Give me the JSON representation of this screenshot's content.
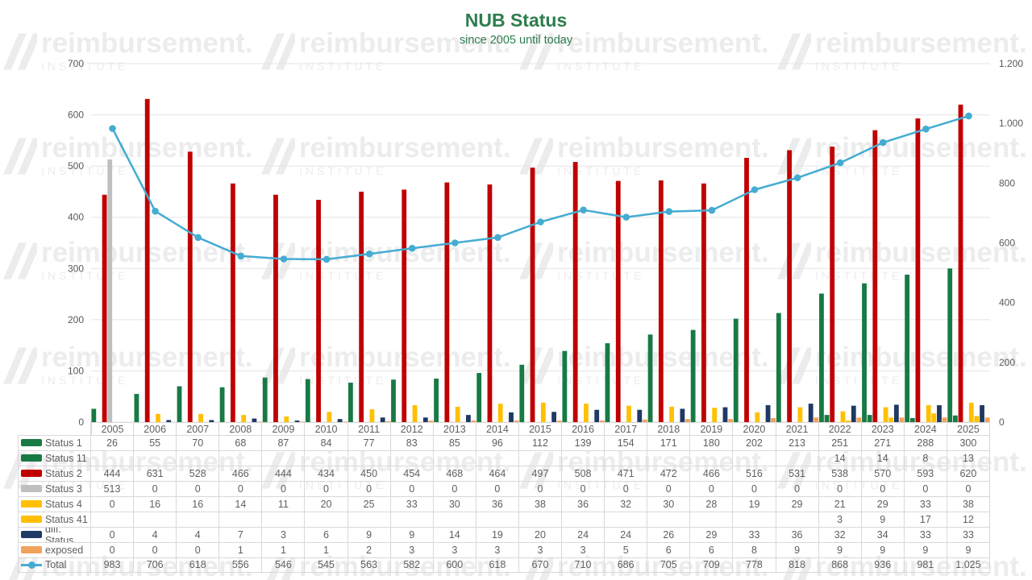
{
  "title": "NUB Status",
  "subtitle": "since 2005 until today",
  "watermark": {
    "brand": "reimbursement.",
    "sub": "INSTITUTE"
  },
  "colors": {
    "title_green": "#2e7d4e",
    "axis_text": "#595959",
    "grid": "#e4e4e4",
    "table_border": "#d9d9d9",
    "table_text": "#5f5f5f"
  },
  "chart_data": {
    "type": "bar",
    "subtype": "clustered-bar-with-line",
    "categories": [
      "2005",
      "2006",
      "2007",
      "2008",
      "2009",
      "2010",
      "2011",
      "2012",
      "2013",
      "2014",
      "2015",
      "2016",
      "2017",
      "2018",
      "2019",
      "2020",
      "2021",
      "2022",
      "2023",
      "2024",
      "2025"
    ],
    "series": [
      {
        "name": "Status 1",
        "type": "bar",
        "axis": "left",
        "color": "#177a45",
        "values": [
          26,
          55,
          70,
          68,
          87,
          84,
          77,
          83,
          85,
          96,
          112,
          139,
          154,
          171,
          180,
          202,
          213,
          251,
          271,
          288,
          300
        ],
        "table": [
          "26",
          "55",
          "70",
          "68",
          "87",
          "84",
          "77",
          "83",
          "85",
          "96",
          "112",
          "139",
          "154",
          "171",
          "180",
          "202",
          "213",
          "251",
          "271",
          "288",
          "300"
        ]
      },
      {
        "name": "Status 11",
        "type": "bar",
        "axis": "left",
        "color": "#177a45",
        "values": [
          null,
          null,
          null,
          null,
          null,
          null,
          null,
          null,
          null,
          null,
          null,
          null,
          null,
          null,
          null,
          null,
          null,
          14,
          14,
          8,
          13
        ],
        "table": [
          "",
          "",
          "",
          "",
          "",
          "",
          "",
          "",
          "",
          "",
          "",
          "",
          "",
          "",
          "",
          "",
          "",
          "14",
          "14",
          "8",
          "13"
        ]
      },
      {
        "name": "Status 2",
        "type": "bar",
        "axis": "left",
        "color": "#c00000",
        "values": [
          444,
          631,
          528,
          466,
          444,
          434,
          450,
          454,
          468,
          464,
          497,
          508,
          471,
          472,
          466,
          516,
          531,
          538,
          570,
          593,
          620
        ],
        "table": [
          "444",
          "631",
          "528",
          "466",
          "444",
          "434",
          "450",
          "454",
          "468",
          "464",
          "497",
          "508",
          "471",
          "472",
          "466",
          "516",
          "531",
          "538",
          "570",
          "593",
          "620"
        ]
      },
      {
        "name": "Status 3",
        "type": "bar",
        "axis": "left",
        "color": "#bfbfbf",
        "values": [
          513,
          0,
          0,
          0,
          0,
          0,
          0,
          0,
          0,
          0,
          0,
          0,
          0,
          0,
          0,
          0,
          0,
          0,
          0,
          0,
          0
        ],
        "table": [
          "513",
          "0",
          "0",
          "0",
          "0",
          "0",
          "0",
          "0",
          "0",
          "0",
          "0",
          "0",
          "0",
          "0",
          "0",
          "0",
          "0",
          "0",
          "0",
          "0",
          "0"
        ]
      },
      {
        "name": "Status 4",
        "type": "bar",
        "axis": "left",
        "color": "#ffc000",
        "values": [
          0,
          16,
          16,
          14,
          11,
          20,
          25,
          33,
          30,
          36,
          38,
          36,
          32,
          30,
          28,
          19,
          29,
          21,
          29,
          33,
          38
        ],
        "table": [
          "0",
          "16",
          "16",
          "14",
          "11",
          "20",
          "25",
          "33",
          "30",
          "36",
          "38",
          "36",
          "32",
          "30",
          "28",
          "19",
          "29",
          "21",
          "29",
          "33",
          "38"
        ]
      },
      {
        "name": "Status 41",
        "type": "bar",
        "axis": "left",
        "color": "#ffc000",
        "values": [
          null,
          null,
          null,
          null,
          null,
          null,
          null,
          null,
          null,
          null,
          null,
          null,
          null,
          null,
          null,
          null,
          null,
          3,
          9,
          17,
          12
        ],
        "table": [
          "",
          "",
          "",
          "",
          "",
          "",
          "",
          "",
          "",
          "",
          "",
          "",
          "",
          "",
          "",
          "",
          "",
          "3",
          "9",
          "17",
          "12"
        ]
      },
      {
        "name": "diff. Status",
        "type": "bar",
        "axis": "left",
        "color": "#1f3864",
        "values": [
          0,
          4,
          4,
          7,
          3,
          6,
          9,
          9,
          14,
          19,
          20,
          24,
          24,
          26,
          29,
          33,
          36,
          32,
          34,
          33,
          33
        ],
        "table": [
          "0",
          "4",
          "4",
          "7",
          "3",
          "6",
          "9",
          "9",
          "14",
          "19",
          "20",
          "24",
          "24",
          "26",
          "29",
          "33",
          "36",
          "32",
          "34",
          "33",
          "33"
        ]
      },
      {
        "name": "exposed",
        "type": "bar",
        "axis": "left",
        "color": "#f2a15c",
        "values": [
          0,
          0,
          0,
          1,
          1,
          1,
          2,
          3,
          3,
          3,
          3,
          3,
          5,
          6,
          6,
          8,
          9,
          9,
          9,
          9,
          9
        ],
        "table": [
          "0",
          "0",
          "0",
          "1",
          "1",
          "1",
          "2",
          "3",
          "3",
          "3",
          "3",
          "3",
          "5",
          "6",
          "6",
          "8",
          "9",
          "9",
          "9",
          "9",
          "9"
        ]
      },
      {
        "name": "Total",
        "type": "line",
        "axis": "right",
        "color": "#45acd1",
        "values": [
          983,
          706,
          618,
          556,
          546,
          545,
          563,
          582,
          600,
          618,
          670,
          710,
          686,
          705,
          709,
          778,
          818,
          868,
          936,
          981,
          1025
        ],
        "table": [
          "983",
          "706",
          "618",
          "556",
          "546",
          "545",
          "563",
          "582",
          "600",
          "618",
          "670",
          "710",
          "686",
          "705",
          "709",
          "778",
          "818",
          "868",
          "936",
          "981",
          "1.025"
        ]
      }
    ],
    "left_axis": {
      "min": 0,
      "max": 700,
      "step": 100,
      "ticks": [
        "0",
        "100",
        "200",
        "300",
        "400",
        "500",
        "600",
        "700"
      ]
    },
    "right_axis": {
      "min": 0,
      "max": 1200,
      "step": 200,
      "ticks": [
        "0",
        "200",
        "400",
        "600",
        "800",
        "1.000",
        "1.200"
      ]
    },
    "grid": true,
    "legend_position": "table-left-column"
  }
}
